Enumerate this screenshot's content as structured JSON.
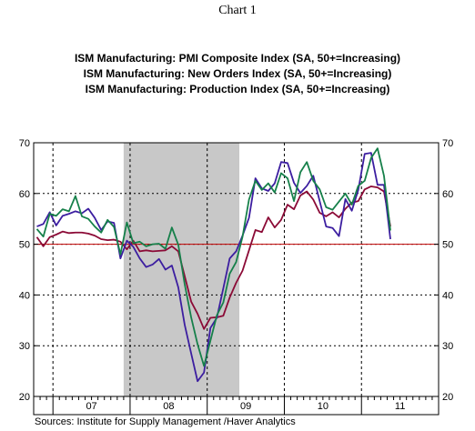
{
  "page": {
    "title": "Chart 1",
    "source": "Sources:  Institute for Supply Management /Haver Analytics"
  },
  "chart_data": {
    "type": "line",
    "title": "Chart 1",
    "xlabel": "",
    "ylabel": "",
    "ylim": [
      20,
      70
    ],
    "y_ticks": [
      20,
      30,
      40,
      50,
      60,
      70
    ],
    "year_labels": [
      "07",
      "08",
      "09",
      "10",
      "11"
    ],
    "x_range": [
      "2006-10",
      "2011-12"
    ],
    "reference_line": {
      "value": 50,
      "color": "#c00000"
    },
    "shaded_period": {
      "start": "2007-12",
      "end": "2009-06",
      "color": "#c8c8c8"
    },
    "grid": true,
    "legend_position": "top",
    "series": [
      {
        "name": "ISM Manufacturing: PMI Composite Index (SA, 50+=Increasing)",
        "color": "#8b0a36",
        "x": [
          "2006-10",
          "2006-11",
          "2006-12",
          "2007-01",
          "2007-02",
          "2007-03",
          "2007-04",
          "2007-05",
          "2007-06",
          "2007-07",
          "2007-08",
          "2007-09",
          "2007-10",
          "2007-11",
          "2007-12",
          "2008-01",
          "2008-02",
          "2008-03",
          "2008-04",
          "2008-05",
          "2008-06",
          "2008-07",
          "2008-08",
          "2008-09",
          "2008-10",
          "2008-11",
          "2008-12",
          "2009-01",
          "2009-02",
          "2009-03",
          "2009-04",
          "2009-05",
          "2009-06",
          "2009-07",
          "2009-08",
          "2009-09",
          "2009-10",
          "2009-11",
          "2009-12",
          "2010-01",
          "2010-02",
          "2010-03",
          "2010-04",
          "2010-05",
          "2010-06",
          "2010-07",
          "2010-08",
          "2010-09",
          "2010-10",
          "2010-11",
          "2010-12",
          "2011-01",
          "2011-02",
          "2011-03",
          "2011-04",
          "2011-05"
        ],
        "values": [
          51.4,
          49.6,
          51.4,
          51.9,
          52.5,
          52.2,
          52.3,
          52.3,
          52.1,
          51.7,
          51.0,
          50.8,
          50.9,
          50.5,
          49.0,
          50.7,
          48.6,
          48.8,
          48.6,
          48.7,
          48.8,
          49.6,
          48.6,
          43.7,
          38.7,
          36.3,
          33.3,
          35.5,
          35.6,
          35.9,
          39.5,
          42.4,
          44.8,
          48.8,
          52.8,
          52.4,
          55.3,
          53.3,
          54.8,
          57.8,
          56.9,
          59.6,
          60.4,
          58.8,
          56.2,
          55.5,
          56.3,
          55.3,
          57.0,
          58.2,
          58.5,
          60.8,
          61.4,
          61.2,
          60.4,
          53.5
        ]
      },
      {
        "name": "ISM Manufacturing: New Orders Index (SA, 50+=Increasing)",
        "color": "#3c1ea0",
        "x": [
          "2006-10",
          "2006-11",
          "2006-12",
          "2007-01",
          "2007-02",
          "2007-03",
          "2007-04",
          "2007-05",
          "2007-06",
          "2007-07",
          "2007-08",
          "2007-09",
          "2007-10",
          "2007-11",
          "2007-12",
          "2008-01",
          "2008-02",
          "2008-03",
          "2008-04",
          "2008-05",
          "2008-06",
          "2008-07",
          "2008-08",
          "2008-09",
          "2008-10",
          "2008-11",
          "2008-12",
          "2009-01",
          "2009-02",
          "2009-03",
          "2009-04",
          "2009-05",
          "2009-06",
          "2009-07",
          "2009-08",
          "2009-09",
          "2009-10",
          "2009-11",
          "2009-12",
          "2010-01",
          "2010-02",
          "2010-03",
          "2010-04",
          "2010-05",
          "2010-06",
          "2010-07",
          "2010-08",
          "2010-09",
          "2010-10",
          "2010-11",
          "2010-12",
          "2011-01",
          "2011-02",
          "2011-03",
          "2011-04",
          "2011-05"
        ],
        "values": [
          53.5,
          54.0,
          56.3,
          53.7,
          55.6,
          56.0,
          56.5,
          56.1,
          57.0,
          55.2,
          52.8,
          54.5,
          54.2,
          47.2,
          50.7,
          49.5,
          47.2,
          45.5,
          46.0,
          47.1,
          45.0,
          45.8,
          41.5,
          34.1,
          28.5,
          23.0,
          24.7,
          33.5,
          35.5,
          41.3,
          47.2,
          48.6,
          51.7,
          55.2,
          63.0,
          61.0,
          60.5,
          62.0,
          66.2,
          66.0,
          62.1,
          60.1,
          61.5,
          63.5,
          58.5,
          53.5,
          53.2,
          51.6,
          58.9,
          56.6,
          60.7,
          67.8,
          68.0,
          61.7,
          61.7,
          51.0
        ]
      },
      {
        "name": "ISM Manufacturing: Production Index (SA, 50+=Increasing)",
        "color": "#16804a",
        "x": [
          "2006-10",
          "2006-11",
          "2006-12",
          "2007-01",
          "2007-02",
          "2007-03",
          "2007-04",
          "2007-05",
          "2007-06",
          "2007-07",
          "2007-08",
          "2007-09",
          "2007-10",
          "2007-11",
          "2007-12",
          "2008-01",
          "2008-02",
          "2008-03",
          "2008-04",
          "2008-05",
          "2008-06",
          "2008-07",
          "2008-08",
          "2008-09",
          "2008-10",
          "2008-11",
          "2008-12",
          "2009-01",
          "2009-02",
          "2009-03",
          "2009-04",
          "2009-05",
          "2009-06",
          "2009-07",
          "2009-08",
          "2009-09",
          "2009-10",
          "2009-11",
          "2009-12",
          "2010-01",
          "2010-02",
          "2010-03",
          "2010-04",
          "2010-05",
          "2010-06",
          "2010-07",
          "2010-08",
          "2010-09",
          "2010-10",
          "2010-11",
          "2010-12",
          "2011-01",
          "2011-02",
          "2011-03",
          "2011-04",
          "2011-05"
        ],
        "values": [
          53.0,
          51.5,
          56.0,
          55.6,
          56.9,
          56.5,
          59.5,
          55.5,
          55.0,
          53.5,
          52.3,
          54.8,
          53.4,
          48.0,
          54.3,
          50.2,
          50.5,
          49.6,
          50.0,
          50.1,
          49.1,
          53.3,
          49.9,
          42.1,
          35.6,
          30.3,
          26.0,
          31.0,
          36.0,
          38.5,
          44.2,
          46.5,
          51.5,
          58.8,
          62.5,
          60.7,
          62.0,
          60.2,
          64.0,
          63.0,
          58.5,
          64.2,
          66.2,
          62.5,
          60.8,
          57.3,
          56.8,
          58.4,
          60.0,
          57.8,
          61.5,
          62.5,
          67.0,
          68.9,
          63.5,
          52.7
        ]
      }
    ]
  }
}
